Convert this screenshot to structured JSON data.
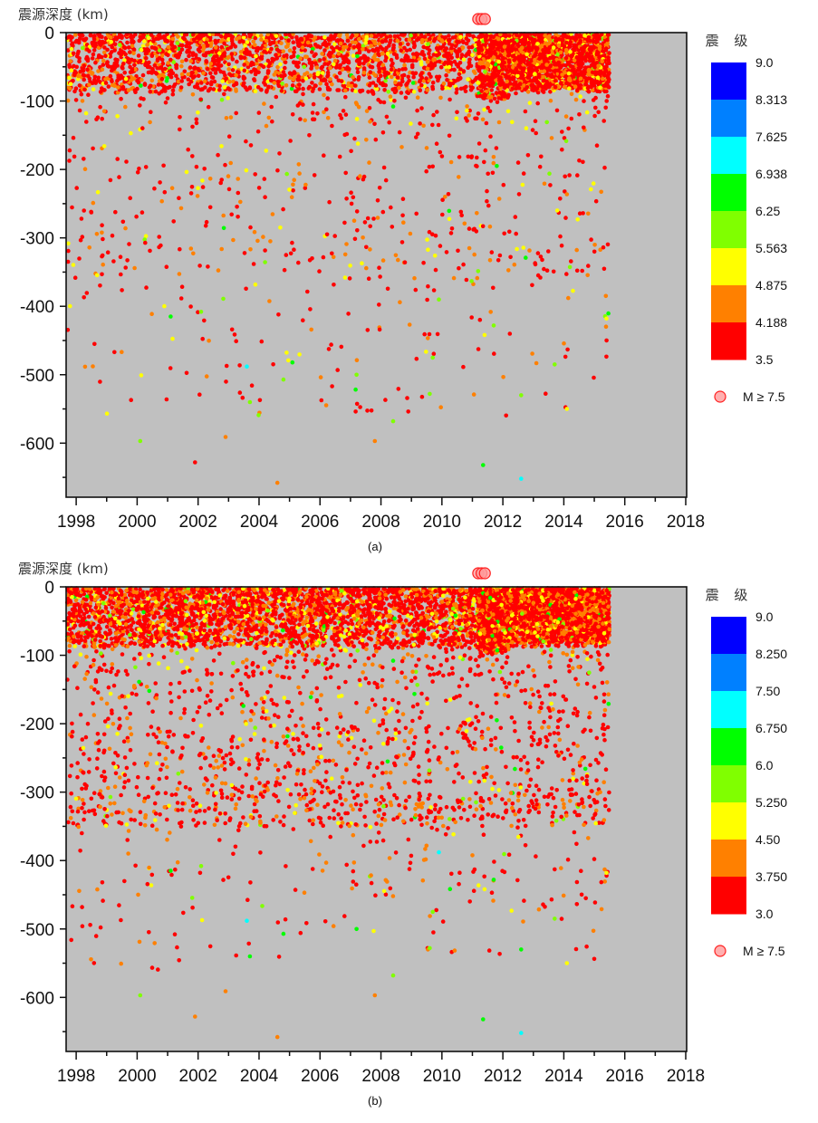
{
  "chart_data": [
    {
      "type": "scatter",
      "caption": "(a)",
      "ylabel": "震源深度 (km)",
      "xlim": [
        1997.67,
        2018.03
      ],
      "ylim": [
        -679,
        0
      ],
      "xticks": [
        "1998",
        "2000",
        "2002",
        "2004",
        "2006",
        "2008",
        "2010",
        "2012",
        "2014",
        "2016",
        "2018"
      ],
      "yticks": [
        "0",
        "-100",
        "-200",
        "-300",
        "-400",
        "-500",
        "-600"
      ],
      "colorbar_title": "震 级",
      "colorbar_labels": [
        "9.0",
        "8.313",
        "7.625",
        "6.938",
        "6.25",
        "5.563",
        "4.875",
        "4.188",
        "3.5"
      ],
      "colorbar_colors": [
        "#0000ff",
        "#0080ff",
        "#00ffff",
        "#00ff00",
        "#80ff00",
        "#ffff00",
        "#ff8000",
        "#ff0000"
      ],
      "large_event_label": "M ≥ 7.5",
      "large_events": [
        [
          2011.19,
          7.5
        ],
        [
          2011.3,
          9.0
        ],
        [
          2011.41,
          7.7
        ]
      ],
      "shallow_cluster": {
        "year_range": [
          1997.7,
          2015.5
        ],
        "depth_range": [
          -85,
          0
        ],
        "count": 2600,
        "dense_after": 2011.19,
        "dense_count": 1500
      },
      "background_density": [
        {
          "depth_range": [
            -130,
            -85
          ],
          "count": 150
        },
        {
          "depth_range": [
            -200,
            -130
          ],
          "count": 110
        },
        {
          "depth_range": [
            -300,
            -200
          ],
          "count": 170
        },
        {
          "depth_range": [
            -360,
            -300
          ],
          "count": 130
        },
        {
          "depth_range": [
            -450,
            -360
          ],
          "count": 60
        },
        {
          "depth_range": [
            -560,
            -450
          ],
          "count": 70
        }
      ],
      "points": [
        [
          2003.6,
          -488,
          7.0
        ],
        [
          2012.6,
          -652,
          7.0
        ],
        [
          2000.1,
          -597,
          5.8
        ],
        [
          2011.35,
          -632,
          6.5
        ],
        [
          2002.9,
          -591,
          4.5
        ],
        [
          2001.9,
          -628,
          3.8
        ],
        [
          2004.6,
          -658,
          4.3
        ],
        [
          2007.8,
          -597,
          4.3
        ],
        [
          2008.4,
          -568,
          5.8
        ],
        [
          2003.7,
          -540,
          5.8
        ],
        [
          2004.8,
          -507,
          6.0
        ],
        [
          2007.2,
          -500,
          6.0
        ],
        [
          2009.6,
          -528,
          5.8
        ],
        [
          2012.6,
          -530,
          6.0
        ],
        [
          2011.7,
          -428,
          6.0
        ],
        [
          2002.1,
          -408,
          5.8
        ],
        [
          2001.1,
          -415,
          6.3
        ],
        [
          2008.4,
          -108,
          6.3
        ],
        [
          2011.8,
          -195,
          6.3
        ],
        [
          2009.9,
          -390,
          5.6
        ],
        [
          2013.7,
          -485,
          5.6
        ],
        [
          2015.4,
          -418,
          5.2
        ],
        [
          2014.1,
          -550,
          5.0
        ],
        [
          2011.4,
          -442,
          5.0
        ],
        [
          2009.7,
          -475,
          5.8
        ]
      ]
    },
    {
      "type": "scatter",
      "caption": "(b)",
      "ylabel": "震源深度 (km)",
      "xlim": [
        1997.67,
        2018.03
      ],
      "ylim": [
        -679,
        0
      ],
      "xticks": [
        "1998",
        "2000",
        "2002",
        "2004",
        "2006",
        "2008",
        "2010",
        "2012",
        "2014",
        "2016",
        "2018"
      ],
      "yticks": [
        "0",
        "-100",
        "-200",
        "-300",
        "-400",
        "-500",
        "-600"
      ],
      "colorbar_title": "震 级",
      "colorbar_labels": [
        "9.0",
        "8.250",
        "7.50",
        "6.750",
        "6.0",
        "5.250",
        "4.50",
        "3.750",
        "3.0"
      ],
      "colorbar_colors": [
        "#0000ff",
        "#0080ff",
        "#00ffff",
        "#00ff00",
        "#80ff00",
        "#ffff00",
        "#ff8000",
        "#ff0000"
      ],
      "large_event_label": "M ≥ 7.5",
      "large_events": [
        [
          2011.19,
          7.5
        ],
        [
          2011.3,
          9.0
        ],
        [
          2011.41,
          7.7
        ]
      ],
      "shallow_cluster": {
        "year_range": [
          1997.7,
          2015.5
        ],
        "depth_range": [
          -85,
          0
        ],
        "count": 4200,
        "dense_after": 2011.19,
        "dense_count": 1800
      },
      "background_density": [
        {
          "depth_range": [
            -130,
            -85
          ],
          "count": 260
        },
        {
          "depth_range": [
            -200,
            -130
          ],
          "count": 260
        },
        {
          "depth_range": [
            -300,
            -200
          ],
          "count": 520
        },
        {
          "depth_range": [
            -350,
            -300
          ],
          "count": 420
        },
        {
          "depth_range": [
            -450,
            -350
          ],
          "count": 120
        },
        {
          "depth_range": [
            -560,
            -450
          ],
          "count": 70
        }
      ],
      "points": [
        [
          2003.6,
          -488,
          7.0
        ],
        [
          2012.6,
          -652,
          7.0
        ],
        [
          2000.1,
          -597,
          5.8
        ],
        [
          2011.35,
          -632,
          6.5
        ],
        [
          2002.9,
          -591,
          4.3
        ],
        [
          2001.9,
          -628,
          3.8
        ],
        [
          2004.6,
          -658,
          4.0
        ],
        [
          2007.8,
          -597,
          4.0
        ],
        [
          2008.4,
          -568,
          5.5
        ],
        [
          2003.7,
          -540,
          6.0
        ],
        [
          2004.8,
          -507,
          6.0
        ],
        [
          2007.2,
          -500,
          6.0
        ],
        [
          2009.6,
          -528,
          5.5
        ],
        [
          2012.6,
          -530,
          6.0
        ],
        [
          2011.7,
          -428,
          6.0
        ],
        [
          2002.1,
          -408,
          5.5
        ],
        [
          2001.1,
          -415,
          6.3
        ],
        [
          2008.4,
          -108,
          6.3
        ],
        [
          2011.8,
          -195,
          6.3
        ],
        [
          2009.9,
          -388,
          6.8
        ],
        [
          2013.7,
          -485,
          5.5
        ],
        [
          2015.4,
          -418,
          5.0
        ],
        [
          2014.1,
          -550,
          5.0
        ],
        [
          2011.4,
          -442,
          5.0
        ],
        [
          2009.7,
          -475,
          5.5
        ]
      ]
    }
  ]
}
